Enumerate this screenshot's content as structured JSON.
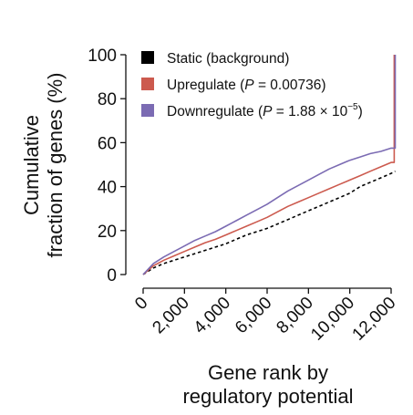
{
  "chart_data": {
    "type": "line",
    "ylabel_lines": [
      "Cumulative",
      "fraction of genes (%)"
    ],
    "xlabel_lines": [
      "Gene rank by",
      "regulatory potential"
    ],
    "xlim": [
      0,
      12000
    ],
    "ylim": [
      0,
      100
    ],
    "x_ticks": [
      0,
      2000,
      4000,
      6000,
      8000,
      10000,
      12000
    ],
    "x_tick_labels": [
      "0",
      "2,000",
      "4,000",
      "6,000",
      "8,000",
      "10,000",
      "12,000"
    ],
    "y_ticks": [
      0,
      20,
      40,
      60,
      80,
      100
    ],
    "y_tick_labels": [
      "0",
      "20",
      "40",
      "60",
      "80",
      "100"
    ],
    "legend_position": "top-left",
    "legend": [
      {
        "key": "static",
        "parts": [
          "Static (background)"
        ],
        "color": "#000000"
      },
      {
        "key": "up",
        "parts": [
          "Upregulate (",
          "P",
          " = 0.00736)"
        ],
        "color": "#cc5a4e"
      },
      {
        "key": "down",
        "parts": [
          "Downregulate (",
          "P",
          " = 1.88 × 10",
          "−5",
          ")"
        ],
        "color": "#7b6bb3"
      }
    ],
    "series": [
      {
        "key": "static",
        "name": "Static (background)",
        "color": "#000000",
        "dashed": true,
        "x": [
          0,
          500,
          1000,
          1500,
          2000,
          2500,
          3000,
          3500,
          4000,
          4500,
          5000,
          5500,
          6000,
          6500,
          7000,
          7500,
          8000,
          8500,
          9000,
          9500,
          10000,
          10500,
          11000,
          11500,
          12000,
          12200
        ],
        "y": [
          0,
          3,
          5,
          6.5,
          8,
          9.5,
          11,
          12.5,
          14,
          16,
          18,
          19.5,
          21,
          23,
          25,
          27,
          29,
          31,
          33,
          35,
          37,
          40,
          42,
          44,
          46,
          47
        ]
      },
      {
        "key": "up",
        "name": "Upregulate",
        "color": "#cc5a4e",
        "dashed": false,
        "x": [
          0,
          500,
          1000,
          1500,
          2000,
          2500,
          3000,
          3500,
          4000,
          4500,
          5000,
          5500,
          6000,
          6500,
          7000,
          7500,
          8000,
          8500,
          9000,
          9500,
          10000,
          10500,
          11000,
          11500,
          12000,
          12150,
          12150
        ],
        "y": [
          0,
          4,
          6.5,
          8.5,
          10.5,
          12.5,
          14.5,
          16,
          18,
          20,
          22,
          24,
          26,
          28.5,
          31,
          33,
          35,
          37,
          39,
          41,
          43,
          45,
          47,
          49,
          51,
          51,
          100
        ]
      },
      {
        "key": "down",
        "name": "Downregulate",
        "color": "#7b6bb3",
        "dashed": false,
        "x": [
          0,
          500,
          1000,
          1500,
          2000,
          2500,
          3000,
          3500,
          4000,
          4500,
          5000,
          5500,
          6000,
          6500,
          7000,
          7500,
          8000,
          8500,
          9000,
          9500,
          10000,
          10500,
          11000,
          11500,
          12000,
          12200,
          12200
        ],
        "y": [
          0,
          5,
          8,
          10.5,
          13,
          15.5,
          17.5,
          19.5,
          22,
          24.5,
          27,
          29.5,
          32,
          35,
          38,
          40.5,
          43,
          45.5,
          48,
          50,
          52,
          53.5,
          55,
          56,
          57.5,
          57.5,
          100
        ]
      }
    ]
  }
}
